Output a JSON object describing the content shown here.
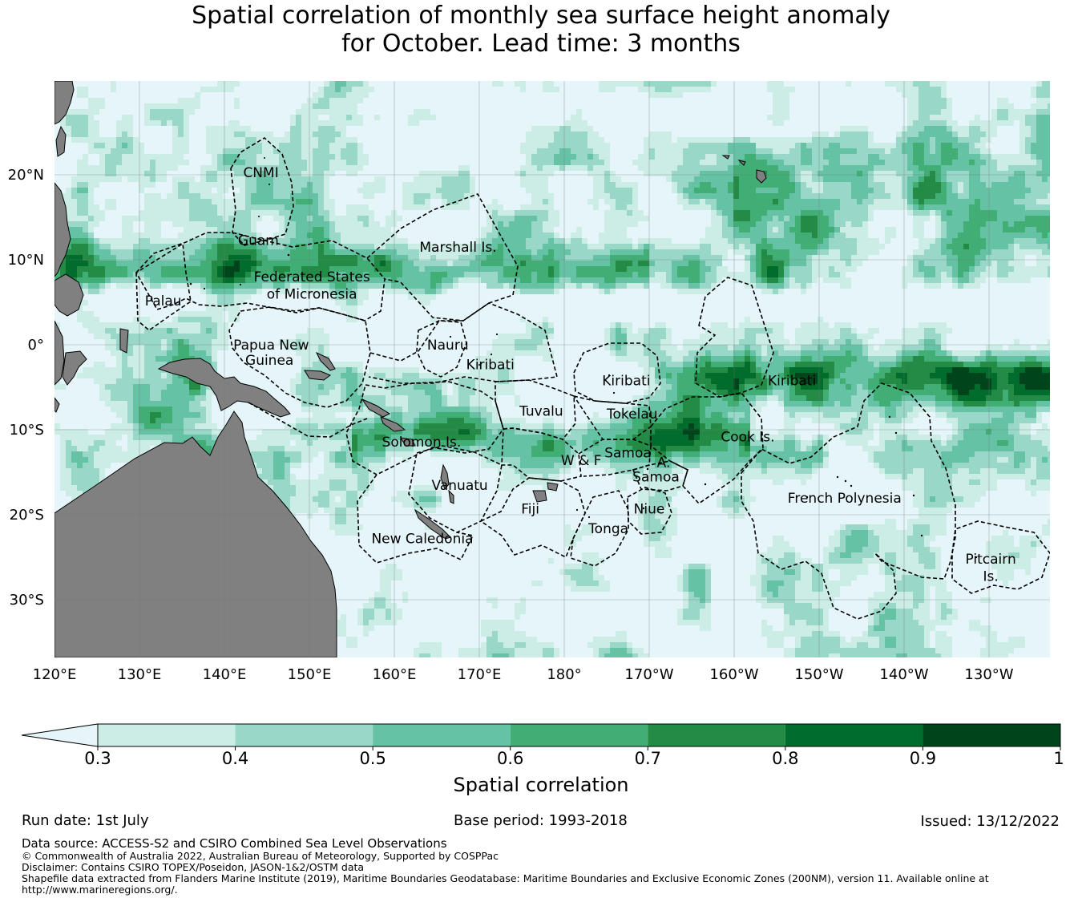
{
  "title_line1": "Spatial correlation of monthly sea surface height anomaly",
  "title_line2": "for October. Lead time: 3 months",
  "map": {
    "lon_labels": [
      "120°E",
      "130°E",
      "140°E",
      "150°E",
      "160°E",
      "170°E",
      "180°",
      "170°W",
      "160°W",
      "150°W",
      "140°W",
      "130°W"
    ],
    "lat_labels": [
      "20°N",
      "10°N",
      "0°",
      "10°S",
      "20°S",
      "30°S"
    ],
    "region_labels": [
      {
        "text": "CNMI",
        "lon": 144.3,
        "lat": 20.3
      },
      {
        "text": "Guam",
        "lon": 144.0,
        "lat": 12.3
      },
      {
        "text": "Marshall Is.",
        "lon": 167.5,
        "lat": 11.5
      },
      {
        "text": "Federated States",
        "lon": 150.3,
        "lat": 8.0
      },
      {
        "text": "of Micronesia",
        "lon": 150.3,
        "lat": 6.0
      },
      {
        "text": "Palau",
        "lon": 132.8,
        "lat": 5.2
      },
      {
        "text": "Papua New",
        "lon": 145.5,
        "lat": 0.0
      },
      {
        "text": "Guinea",
        "lon": 145.3,
        "lat": -1.8
      },
      {
        "text": "Nauru",
        "lon": 166.3,
        "lat": 0.0
      },
      {
        "text": "Kiribati",
        "lon": 171.3,
        "lat": -2.3
      },
      {
        "text": "Kiribati",
        "lon": 187.3,
        "lat": -4.2
      },
      {
        "text": "Kiribati",
        "lon": 206.8,
        "lat": -4.2
      },
      {
        "text": "Tuvalu",
        "lon": 177.3,
        "lat": -7.8
      },
      {
        "text": "Tokelau",
        "lon": 188.0,
        "lat": -8.1
      },
      {
        "text": "Cook Is.",
        "lon": 201.6,
        "lat": -10.8
      },
      {
        "text": "Solomon Is.",
        "lon": 163.2,
        "lat": -11.4
      },
      {
        "text": "Samoa",
        "lon": 187.5,
        "lat": -12.7
      },
      {
        "text": "W & F",
        "lon": 182.0,
        "lat": -13.6
      },
      {
        "text": "A.",
        "lon": 191.7,
        "lat": -13.8
      },
      {
        "text": "Samoa",
        "lon": 190.8,
        "lat": -15.5
      },
      {
        "text": "Vanuatu",
        "lon": 167.7,
        "lat": -16.5
      },
      {
        "text": "Fiji",
        "lon": 176.0,
        "lat": -19.3
      },
      {
        "text": "Niue",
        "lon": 190.0,
        "lat": -19.3
      },
      {
        "text": "Tonga",
        "lon": 185.2,
        "lat": -21.6
      },
      {
        "text": "French Polynesia",
        "lon": 213.0,
        "lat": -18.0
      },
      {
        "text": "New Caledonia",
        "lon": 163.3,
        "lat": -22.8
      },
      {
        "text": "Pitcairn",
        "lon": 230.2,
        "lat": -25.2
      },
      {
        "text": "Is.",
        "lon": 230.2,
        "lat": -27.2
      }
    ]
  },
  "colorbar": {
    "tick_labels": [
      "0.3",
      "0.4",
      "0.5",
      "0.6",
      "0.7",
      "0.8",
      "0.9",
      "1"
    ],
    "colors": [
      "#e5f5f9",
      "#ccece6",
      "#99d8c9",
      "#66c2a4",
      "#41ae76",
      "#238b45",
      "#006d2c",
      "#00441b"
    ],
    "label": "Spatial correlation"
  },
  "footer": {
    "run_date": "Run date: 1st July",
    "base_period": "Base period: 1993-2018",
    "issued": "Issued: 13/12/2022",
    "data_source": "Data source: ACCESS-S2 and CSIRO Combined Sea Level Observations",
    "copyright": "© Commonwealth of Australia 2022, Australian Bureau of Meteorology, Supported by COSPPac",
    "disclaimer": "Disclaimer: Contains CSIRO TOPEX/Poseidon, JASON-1&2/OSTM data",
    "shapefile_1": "Shapefile data extracted from Flanders Marine Institute (2019), Maritime Boundaries Geodatabase: Maritime Boundaries and Exclusive Economic Zones (200NM), version 11. Available online at",
    "shapefile_2": "http://www.marineregions.org/."
  }
}
